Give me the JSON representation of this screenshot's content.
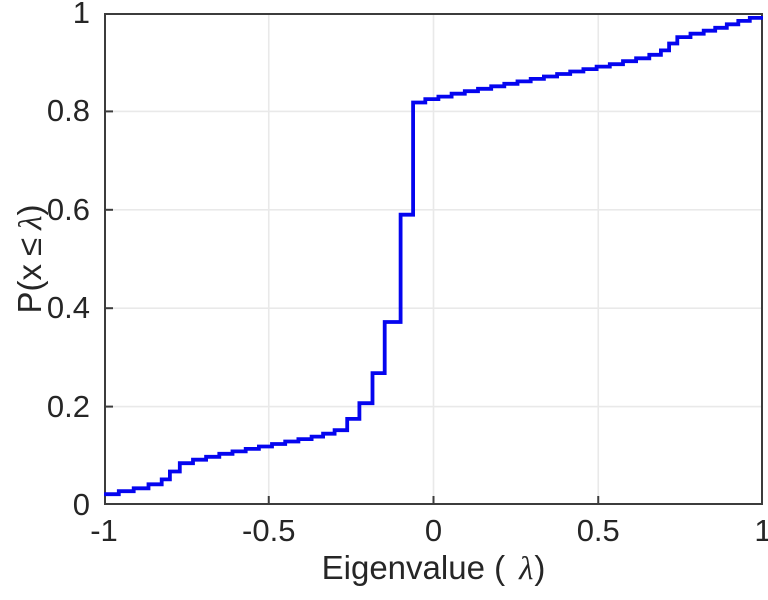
{
  "labels": {
    "xlabel_text": "Eigenvalue (",
    "xlabel_symbol": "λ",
    "xlabel_close": ")",
    "ylabel_p": "P(x",
    "ylabel_leq": "≤",
    "ylabel_symbol": "λ",
    "ylabel_close": ")"
  },
  "chart_data": {
    "type": "line",
    "subtype": "empirical_cdf_staircase",
    "title": "",
    "xlabel": "Eigenvalue ( λ)",
    "ylabel": "P(x ≤ λ)",
    "xlim": [
      -1,
      1
    ],
    "ylim": [
      0,
      1
    ],
    "x_ticks": [
      -1,
      -0.5,
      0,
      0.5,
      1
    ],
    "x_tick_labels": [
      "-1",
      "-0.5",
      "0",
      "0.5",
      "1"
    ],
    "y_ticks": [
      0,
      0.2,
      0.4,
      0.6,
      0.8,
      1
    ],
    "y_tick_labels": [
      "0",
      "0.2",
      "0.4",
      "0.6",
      "0.8",
      "1"
    ],
    "grid": true,
    "legend": null,
    "line_color": "#0505ef",
    "line_width": 3.8,
    "axis_color": "#3c3c3c",
    "grid_color": "#e9e9e9",
    "text_color": "#262626",
    "steps": [
      [
        -1.0,
        0.022
      ],
      [
        -0.955,
        0.028
      ],
      [
        -0.91,
        0.034
      ],
      [
        -0.865,
        0.042
      ],
      [
        -0.825,
        0.052
      ],
      [
        -0.8,
        0.068
      ],
      [
        -0.77,
        0.085
      ],
      [
        -0.73,
        0.092
      ],
      [
        -0.69,
        0.098
      ],
      [
        -0.65,
        0.104
      ],
      [
        -0.61,
        0.109
      ],
      [
        -0.57,
        0.114
      ],
      [
        -0.53,
        0.119
      ],
      [
        -0.49,
        0.124
      ],
      [
        -0.45,
        0.129
      ],
      [
        -0.41,
        0.134
      ],
      [
        -0.37,
        0.139
      ],
      [
        -0.335,
        0.145
      ],
      [
        -0.3,
        0.152
      ],
      [
        -0.262,
        0.175
      ],
      [
        -0.225,
        0.207
      ],
      [
        -0.185,
        0.268
      ],
      [
        -0.148,
        0.372
      ],
      [
        -0.1,
        0.59
      ],
      [
        -0.062,
        0.818
      ],
      [
        -0.025,
        0.825
      ],
      [
        0.015,
        0.83
      ],
      [
        0.055,
        0.836
      ],
      [
        0.095,
        0.841
      ],
      [
        0.135,
        0.846
      ],
      [
        0.175,
        0.851
      ],
      [
        0.215,
        0.856
      ],
      [
        0.255,
        0.861
      ],
      [
        0.295,
        0.866
      ],
      [
        0.335,
        0.871
      ],
      [
        0.375,
        0.876
      ],
      [
        0.415,
        0.881
      ],
      [
        0.455,
        0.886
      ],
      [
        0.495,
        0.891
      ],
      [
        0.535,
        0.896
      ],
      [
        0.575,
        0.902
      ],
      [
        0.615,
        0.908
      ],
      [
        0.655,
        0.915
      ],
      [
        0.69,
        0.924
      ],
      [
        0.715,
        0.938
      ],
      [
        0.74,
        0.951
      ],
      [
        0.78,
        0.958
      ],
      [
        0.82,
        0.964
      ],
      [
        0.855,
        0.97
      ],
      [
        0.89,
        0.977
      ],
      [
        0.925,
        0.984
      ],
      [
        0.96,
        0.99
      ]
    ]
  }
}
